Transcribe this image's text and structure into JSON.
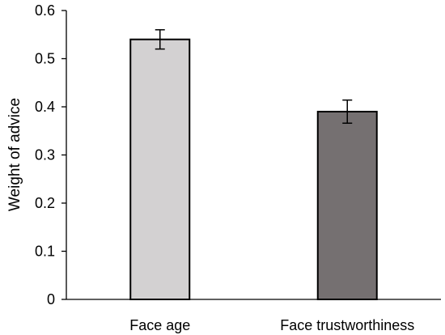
{
  "chart_data": {
    "type": "bar",
    "title": "",
    "xlabel": "",
    "ylabel": "Weight of advice",
    "categories": [
      "Face age",
      "Face trustworthiness"
    ],
    "values": [
      0.54,
      0.39
    ],
    "error": [
      0.02,
      0.024
    ],
    "ylim": [
      0,
      0.6
    ],
    "yticks": [
      0,
      0.1,
      0.2,
      0.3,
      0.4,
      0.5,
      0.6
    ],
    "ytick_labels": [
      "0",
      "0.1",
      "0.2",
      "0.3",
      "0.4",
      "0.5",
      "0.6"
    ],
    "grid": false,
    "legend": "none",
    "colors": [
      "#d3d1d2",
      "#757071"
    ],
    "outline_color": "#000000"
  }
}
